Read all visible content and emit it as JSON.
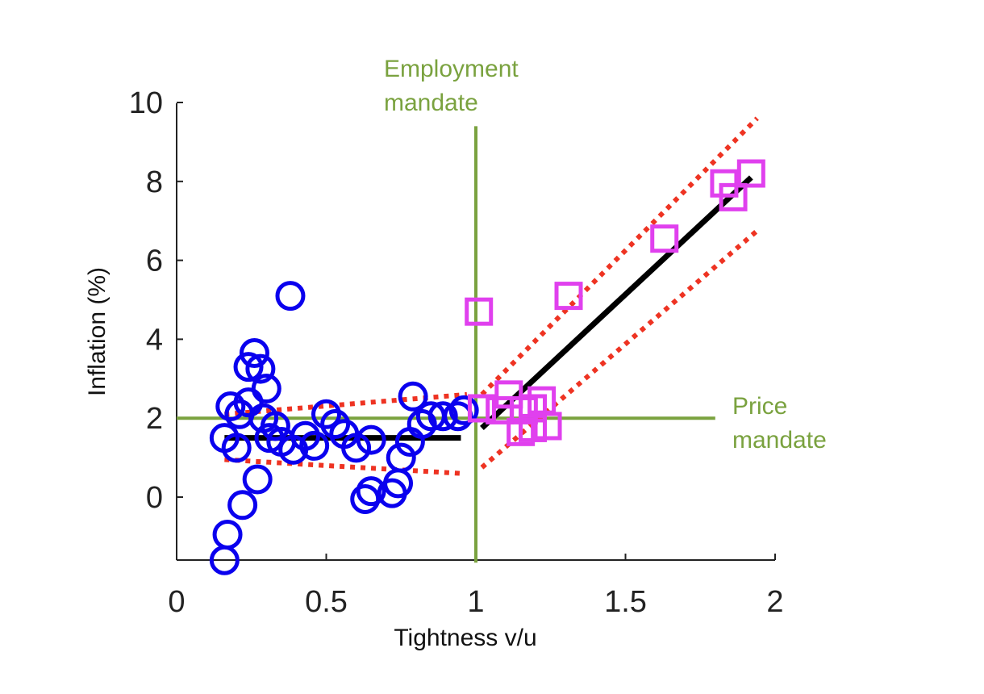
{
  "chart_data": {
    "type": "scatter",
    "xlabel": "Tightness v/u",
    "ylabel": "Inflation (%)",
    "xlim": [
      0,
      2
    ],
    "ylim": [
      -1.6,
      10
    ],
    "xticks": [
      0,
      0.5,
      1,
      1.5,
      2
    ],
    "xtick_labels": [
      "0",
      "0.5",
      "1",
      "1.5",
      "2"
    ],
    "yticks": [
      0,
      2,
      4,
      6,
      8,
      10
    ],
    "ytick_labels": [
      "0",
      "2",
      "4",
      "6",
      "8",
      "10"
    ],
    "grid": false,
    "colors": {
      "circles": "#0a00ee",
      "squares": "#e040ee",
      "fit": "#000000",
      "band": "#ee3322",
      "mandate": "#7aa23f",
      "axis": "#222222"
    },
    "series": [
      {
        "marker": "circle",
        "points": [
          [
            0.16,
            -1.6
          ],
          [
            0.17,
            -0.95
          ],
          [
            0.22,
            -0.2
          ],
          [
            0.27,
            0.45
          ],
          [
            0.18,
            2.3
          ],
          [
            0.21,
            2.1
          ],
          [
            0.24,
            2.4
          ],
          [
            0.16,
            1.5
          ],
          [
            0.2,
            1.25
          ],
          [
            0.26,
            3.65
          ],
          [
            0.24,
            3.3
          ],
          [
            0.28,
            3.25
          ],
          [
            0.3,
            2.75
          ],
          [
            0.29,
            2.0
          ],
          [
            0.33,
            1.8
          ],
          [
            0.31,
            1.5
          ],
          [
            0.35,
            1.4
          ],
          [
            0.39,
            1.2
          ],
          [
            0.38,
            5.1
          ],
          [
            0.43,
            1.55
          ],
          [
            0.46,
            1.3
          ],
          [
            0.5,
            2.1
          ],
          [
            0.53,
            1.85
          ],
          [
            0.56,
            1.6
          ],
          [
            0.6,
            1.25
          ],
          [
            0.65,
            1.45
          ],
          [
            0.63,
            -0.05
          ],
          [
            0.65,
            0.15
          ],
          [
            0.72,
            0.1
          ],
          [
            0.74,
            0.35
          ],
          [
            0.75,
            1.0
          ],
          [
            0.78,
            1.4
          ],
          [
            0.79,
            2.55
          ],
          [
            0.82,
            1.85
          ],
          [
            0.85,
            2.05
          ],
          [
            0.89,
            2.05
          ],
          [
            0.94,
            2.05
          ],
          [
            0.96,
            2.2
          ]
        ]
      },
      {
        "marker": "square",
        "points": [
          [
            1.01,
            4.7
          ],
          [
            1.02,
            2.25
          ],
          [
            1.08,
            2.2
          ],
          [
            1.11,
            2.6
          ],
          [
            1.16,
            2.2
          ],
          [
            1.19,
            2.25
          ],
          [
            1.22,
            2.45
          ],
          [
            1.15,
            1.65
          ],
          [
            1.19,
            1.75
          ],
          [
            1.24,
            1.8
          ],
          [
            1.31,
            5.1
          ],
          [
            1.63,
            6.55
          ],
          [
            1.83,
            7.95
          ],
          [
            1.86,
            7.6
          ],
          [
            1.92,
            8.2
          ]
        ]
      }
    ],
    "fit_lines": [
      {
        "style": "solid",
        "points": [
          [
            0.16,
            1.5
          ],
          [
            0.95,
            1.5
          ]
        ]
      },
      {
        "style": "solid",
        "points": [
          [
            1.02,
            1.75
          ],
          [
            1.92,
            8.1
          ]
        ]
      }
    ],
    "band_lines": [
      {
        "style": "dotted",
        "points": [
          [
            0.16,
            2.1
          ],
          [
            0.97,
            2.6
          ]
        ]
      },
      {
        "style": "dotted",
        "points": [
          [
            0.16,
            0.95
          ],
          [
            0.95,
            0.6
          ]
        ]
      },
      {
        "style": "dotted",
        "points": [
          [
            1.02,
            2.6
          ],
          [
            1.94,
            9.6
          ]
        ]
      },
      {
        "style": "dotted",
        "points": [
          [
            1.02,
            0.75
          ],
          [
            1.94,
            6.75
          ]
        ]
      }
    ],
    "reference_lines": [
      {
        "orientation": "vertical",
        "value": 1,
        "span": [
          -1.6,
          9.4
        ]
      },
      {
        "orientation": "horizontal",
        "value": 2,
        "span": [
          0,
          1.8
        ]
      }
    ],
    "annotations": [
      {
        "lines": [
          "Employment",
          "mandate"
        ]
      },
      {
        "lines": [
          "Price",
          "mandate"
        ]
      }
    ]
  }
}
